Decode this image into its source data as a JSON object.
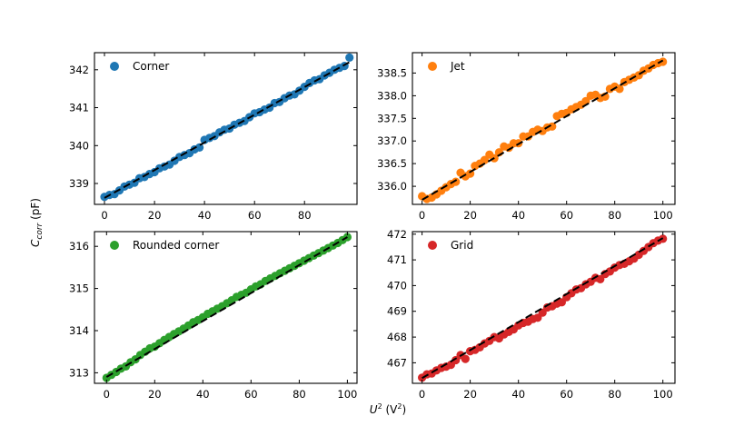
{
  "figure": {
    "ylabel": "C_corr (pF)",
    "xlabel": "U² (V²)"
  },
  "chart_data": [
    {
      "type": "scatter",
      "legend": "Corner",
      "color": "#1f77b4",
      "fit_color": "#000000",
      "xlim": [
        -4,
        101
      ],
      "ylim": [
        338.45,
        342.45
      ],
      "xticks": [
        0,
        20,
        40,
        60,
        80
      ],
      "xtick_labels": [
        "0",
        "20",
        "40",
        "60",
        "80"
      ],
      "yticks": [
        339,
        340,
        341,
        342
      ],
      "ytick_labels": [
        "339",
        "340",
        "341",
        "342"
      ],
      "fit": {
        "x": [
          0,
          98
        ],
        "y": [
          338.62,
          342.2
        ]
      },
      "points": {
        "x": [
          0,
          2,
          4,
          6,
          8,
          10,
          12,
          14,
          16,
          18,
          20,
          22,
          24,
          26,
          28,
          30,
          32,
          34,
          36,
          38,
          40,
          42,
          44,
          46,
          48,
          50,
          52,
          54,
          56,
          58,
          60,
          62,
          64,
          66,
          68,
          70,
          72,
          74,
          76,
          78,
          80,
          82,
          84,
          86,
          88,
          90,
          92,
          94,
          96,
          98
        ],
        "y": [
          338.65,
          338.7,
          338.72,
          338.82,
          338.92,
          338.97,
          339.02,
          339.14,
          339.17,
          339.25,
          339.3,
          339.4,
          339.45,
          339.5,
          339.6,
          339.7,
          339.75,
          339.8,
          339.9,
          339.95,
          340.15,
          340.2,
          340.25,
          340.35,
          340.42,
          340.45,
          340.55,
          340.6,
          340.65,
          340.75,
          340.85,
          340.88,
          340.95,
          341.0,
          341.12,
          341.15,
          341.25,
          341.32,
          341.35,
          341.45,
          341.55,
          341.65,
          341.72,
          341.75,
          341.85,
          341.92,
          342.0,
          342.05,
          342.1,
          342.32
        ]
      }
    },
    {
      "type": "scatter",
      "legend": "Jet",
      "color": "#ff7f0e",
      "fit_color": "#000000",
      "xlim": [
        -4,
        105
      ],
      "ylim": [
        335.6,
        338.95
      ],
      "xticks": [
        0,
        20,
        40,
        60,
        80,
        100
      ],
      "xtick_labels": [
        "0",
        "20",
        "40",
        "60",
        "80",
        "100"
      ],
      "yticks": [
        336.0,
        336.5,
        337.0,
        337.5,
        338.0,
        338.5
      ],
      "ytick_labels": [
        "336.0",
        "336.5",
        "337.0",
        "337.5",
        "338.0",
        "338.5"
      ],
      "fit": {
        "x": [
          0,
          100
        ],
        "y": [
          335.7,
          338.78
        ]
      },
      "points": {
        "x": [
          0,
          2,
          4,
          6,
          8,
          10,
          12,
          14,
          16,
          18,
          20,
          22,
          24,
          26,
          28,
          30,
          32,
          34,
          36,
          38,
          40,
          42,
          44,
          46,
          48,
          50,
          52,
          54,
          56,
          58,
          60,
          62,
          64,
          66,
          68,
          70,
          72,
          74,
          76,
          78,
          80,
          82,
          84,
          86,
          88,
          90,
          92,
          94,
          96,
          98,
          100
        ],
        "y": [
          335.78,
          335.72,
          335.75,
          335.82,
          335.9,
          335.98,
          336.05,
          336.1,
          336.3,
          336.22,
          336.28,
          336.45,
          336.5,
          336.58,
          336.7,
          336.62,
          336.75,
          336.88,
          336.85,
          336.95,
          336.95,
          337.1,
          337.1,
          337.2,
          337.25,
          337.22,
          337.3,
          337.32,
          337.55,
          337.6,
          337.62,
          337.7,
          337.75,
          337.8,
          337.88,
          338.0,
          338.02,
          337.95,
          337.98,
          338.15,
          338.2,
          338.15,
          338.3,
          338.35,
          338.4,
          338.45,
          338.55,
          338.6,
          338.68,
          338.72,
          338.75
        ]
      }
    },
    {
      "type": "scatter",
      "legend": "Rounded corner",
      "color": "#2ca02c",
      "fit_color": "#000000",
      "xlim": [
        -5,
        104
      ],
      "ylim": [
        312.75,
        316.35
      ],
      "xticks": [
        0,
        20,
        40,
        60,
        80,
        100
      ],
      "xtick_labels": [
        "0",
        "20",
        "40",
        "60",
        "80",
        "100"
      ],
      "yticks": [
        313,
        314,
        315,
        316
      ],
      "ytick_labels": [
        "313",
        "314",
        "315",
        "316"
      ],
      "fit": {
        "x": [
          0,
          100
        ],
        "y": [
          312.9,
          316.22
        ]
      },
      "points": {
        "x": [
          0,
          2,
          4,
          6,
          8,
          10,
          12,
          14,
          16,
          18,
          20,
          22,
          24,
          26,
          28,
          30,
          32,
          34,
          36,
          38,
          40,
          42,
          44,
          46,
          48,
          50,
          52,
          54,
          56,
          58,
          60,
          62,
          64,
          66,
          68,
          70,
          72,
          74,
          76,
          78,
          80,
          82,
          84,
          86,
          88,
          90,
          92,
          94,
          96,
          98,
          100
        ],
        "y": [
          312.88,
          312.95,
          313.02,
          313.1,
          313.15,
          313.25,
          313.32,
          313.42,
          313.5,
          313.58,
          313.62,
          313.7,
          313.78,
          313.85,
          313.92,
          313.98,
          314.05,
          314.12,
          314.2,
          314.25,
          314.32,
          314.4,
          314.46,
          314.52,
          314.58,
          314.65,
          314.72,
          314.8,
          314.85,
          314.9,
          314.98,
          315.05,
          315.1,
          315.18,
          315.24,
          315.3,
          315.36,
          315.42,
          315.48,
          315.54,
          315.6,
          315.66,
          315.72,
          315.78,
          315.84,
          315.9,
          315.96,
          316.02,
          316.08,
          316.15,
          316.22
        ]
      }
    },
    {
      "type": "scatter",
      "legend": "Grid",
      "color": "#d62728",
      "fit_color": "#000000",
      "xlim": [
        -4,
        105
      ],
      "ylim": [
        466.2,
        472.1
      ],
      "xticks": [
        0,
        20,
        40,
        60,
        80,
        100
      ],
      "xtick_labels": [
        "0",
        "20",
        "40",
        "60",
        "80",
        "100"
      ],
      "yticks": [
        467,
        468,
        469,
        470,
        471,
        472
      ],
      "ytick_labels": [
        "467",
        "468",
        "469",
        "470",
        "471",
        "472"
      ],
      "fit": {
        "x": [
          0,
          100
        ],
        "y": [
          466.4,
          471.85
        ]
      },
      "points": {
        "x": [
          0,
          2,
          4,
          6,
          8,
          10,
          12,
          14,
          16,
          18,
          20,
          22,
          24,
          26,
          28,
          30,
          32,
          34,
          36,
          38,
          40,
          42,
          44,
          46,
          48,
          50,
          52,
          54,
          56,
          58,
          60,
          62,
          64,
          66,
          68,
          70,
          72,
          74,
          76,
          78,
          80,
          82,
          84,
          86,
          88,
          90,
          92,
          94,
          96,
          98,
          100
        ],
        "y": [
          466.42,
          466.55,
          466.58,
          466.7,
          466.8,
          466.85,
          466.92,
          467.1,
          467.3,
          467.15,
          467.45,
          467.5,
          467.6,
          467.75,
          467.85,
          468.0,
          467.95,
          468.1,
          468.2,
          468.3,
          468.45,
          468.55,
          468.6,
          468.7,
          468.75,
          468.95,
          469.15,
          469.2,
          469.3,
          469.35,
          469.55,
          469.7,
          469.85,
          469.9,
          470.05,
          470.15,
          470.3,
          470.25,
          470.45,
          470.55,
          470.7,
          470.8,
          470.85,
          470.95,
          471.05,
          471.2,
          471.35,
          471.5,
          471.65,
          471.75,
          471.82
        ]
      }
    }
  ]
}
